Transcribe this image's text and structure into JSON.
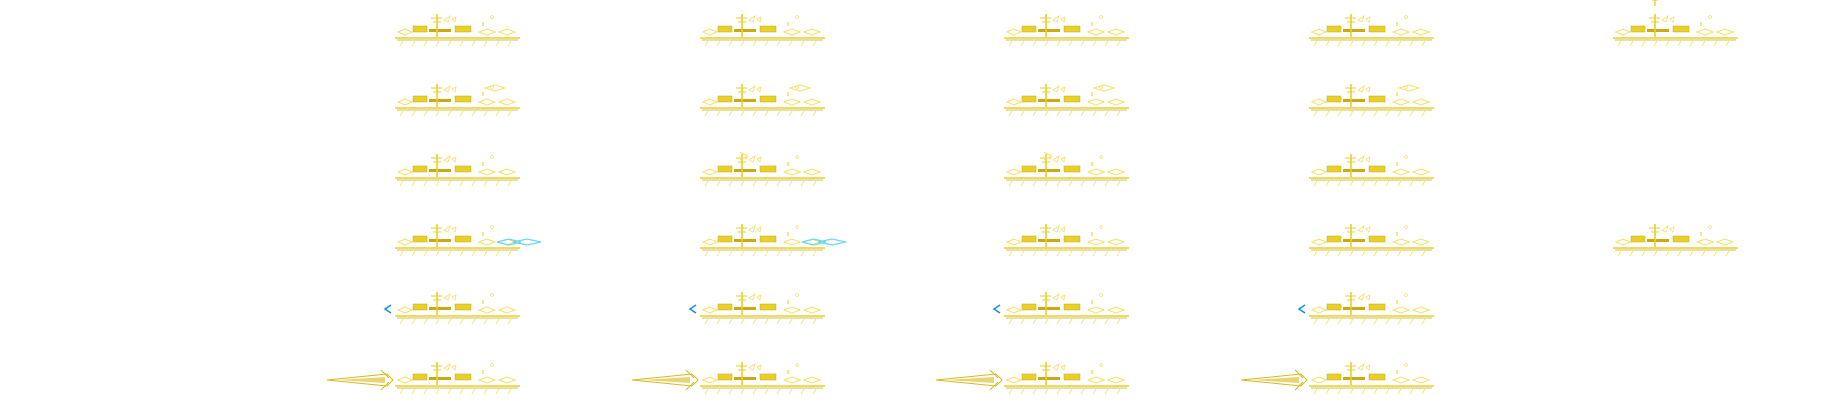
{
  "sprite_sheet": {
    "palette": {
      "hull": "#e8cf2a",
      "hull_dark": "#c9aa14",
      "deck": "#f2e06a",
      "thrust_blue": "#1e90e0",
      "thrust_cyan": "#6fd6ea",
      "exhaust": "#d8b81c"
    },
    "columns": [
      {
        "frames": [
          "idle",
          "sail-right-a",
          "sail-down",
          "thrust-right-cyan",
          "thrust-left-blue",
          "exhaust-plume"
        ]
      },
      {
        "frames": [
          "idle",
          "sail-right-b",
          "sail-down-b",
          "thrust-right-cyan",
          "thrust-left-blue",
          "exhaust-plume"
        ]
      },
      {
        "frames": [
          "idle",
          "sail-right-b",
          "sail-down-b",
          "idle",
          "thrust-left-blue",
          "exhaust-plume"
        ]
      },
      {
        "frames": [
          "idle",
          "sail-right-a",
          "idle",
          "idle",
          "thrust-left-blue",
          "exhaust-plume"
        ]
      },
      {
        "frames": [
          "mast-up",
          "",
          "",
          "idle",
          "",
          ""
        ]
      }
    ]
  }
}
